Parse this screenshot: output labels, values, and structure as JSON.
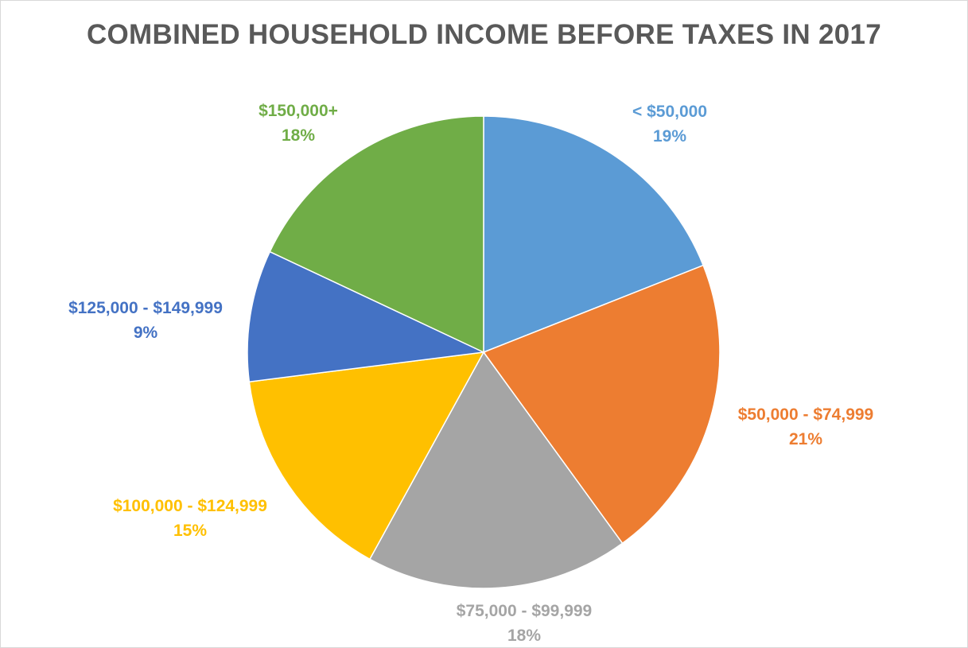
{
  "chart_data": {
    "type": "pie",
    "title": "COMBINED HOUSEHOLD INCOME BEFORE TAXES IN 2017",
    "categories": [
      "< $50,000",
      "$50,000 - $74,999",
      "$75,000 - $99,999",
      "$100,000 - $124,999",
      "$125,000 - $149,999",
      "$150,000+"
    ],
    "values": [
      19,
      21,
      18,
      15,
      9,
      18
    ],
    "value_labels": [
      "19%",
      "21%",
      "18%",
      "15%",
      "9%",
      "18%"
    ],
    "colors": [
      "#5B9BD5",
      "#ED7D31",
      "#A5A5A5",
      "#FFC000",
      "#4472C4",
      "#70AD47"
    ],
    "start_angle": "12 o'clock",
    "direction": "clockwise",
    "legend": "none",
    "data_labels": "outside end"
  }
}
